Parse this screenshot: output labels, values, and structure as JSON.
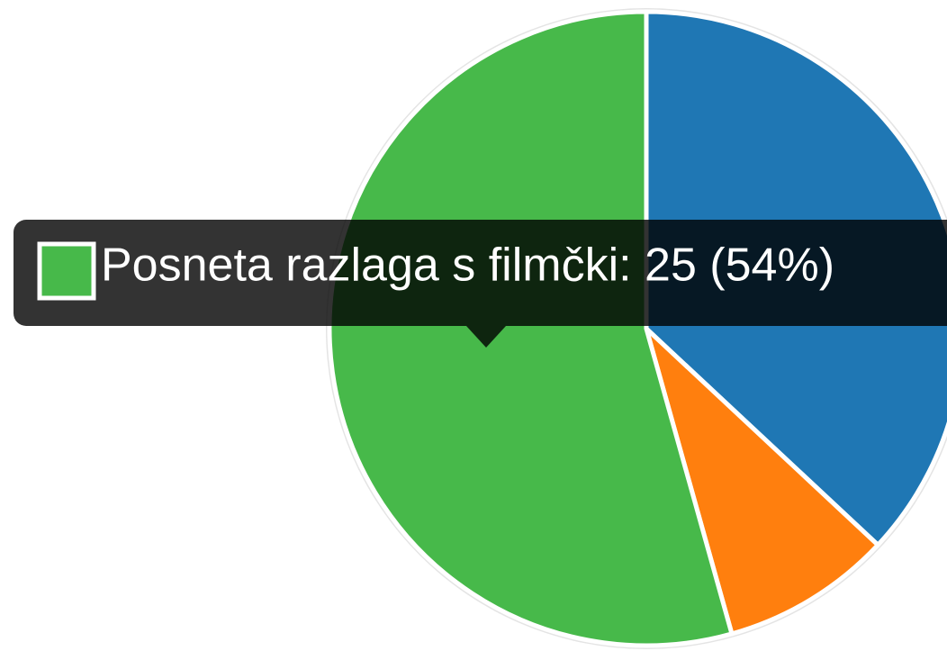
{
  "chart_data": {
    "type": "pie",
    "categories": [
      null,
      null,
      "Posneta razlaga s filmčki"
    ],
    "values": [
      17,
      4,
      25
    ],
    "colors": [
      "#1f77b4",
      "#ff7f0e",
      "#47b94a"
    ],
    "tooltip": "Posneta razlaga s filmčki: 25 (54%)",
    "tooltip_index": 2
  }
}
